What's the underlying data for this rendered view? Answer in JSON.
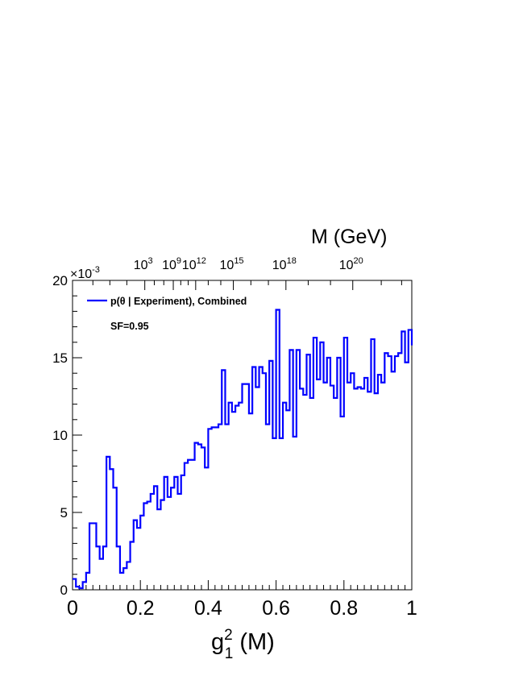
{
  "colors": {
    "series": "#0000ff",
    "axis": "#000000",
    "background": "#ffffff"
  },
  "chart_data": {
    "type": "histogram",
    "xlabel": "g",
    "xlabel_sup": "2",
    "xlabel_sub": "1",
    "xlabel_suffix": " (M)",
    "xlim": [
      0,
      1
    ],
    "ylim": [
      0,
      0.02
    ],
    "y_multiplier": "×10",
    "y_multiplier_exp": "-3",
    "x_tick_labels": [
      "0",
      "0.2",
      "0.4",
      "0.6",
      "0.8",
      "1"
    ],
    "x_ticks": [
      0,
      0.2,
      0.4,
      0.6,
      0.8,
      1.0
    ],
    "y_tick_labels": [
      "0",
      "5",
      "10",
      "15",
      "20"
    ],
    "y_ticks": [
      0,
      0.005,
      0.01,
      0.015,
      0.02
    ],
    "top_axis": {
      "label": "M (GeV)",
      "ticks": [
        {
          "base": "10",
          "exp": "3",
          "x": 0.213
        },
        {
          "base": "10",
          "exp": "9",
          "x": 0.297
        },
        {
          "base": "10",
          "exp": "12",
          "x": 0.363
        },
        {
          "base": "10",
          "exp": "15",
          "x": 0.474
        },
        {
          "base": "10",
          "exp": "18",
          "x": 0.629
        },
        {
          "base": "10",
          "exp": "20",
          "x": 0.826
        }
      ]
    },
    "legend": {
      "series_label": "p(θ | Experiment), Combined",
      "note": "SF=0.95",
      "position": "top-left"
    },
    "bin_edges_start": 0,
    "bin_width": 0.01,
    "series": [
      {
        "values": [
          0.0007,
          0.0002,
          0.0001,
          0.0005,
          0.0011,
          0.0043,
          0.0043,
          0.0028,
          0.002,
          0.0028,
          0.0086,
          0.0078,
          0.0066,
          0.0028,
          0.0011,
          0.0014,
          0.0018,
          0.0031,
          0.0045,
          0.004,
          0.0048,
          0.0056,
          0.0057,
          0.0062,
          0.0067,
          0.0052,
          0.0058,
          0.0073,
          0.006,
          0.0066,
          0.0073,
          0.0062,
          0.0074,
          0.0082,
          0.0084,
          0.0084,
          0.0095,
          0.0094,
          0.0092,
          0.0079,
          0.0104,
          0.0105,
          0.0105,
          0.0107,
          0.0142,
          0.0107,
          0.0121,
          0.0115,
          0.0119,
          0.0121,
          0.0133,
          0.0133,
          0.0114,
          0.0144,
          0.0131,
          0.0144,
          0.014,
          0.0107,
          0.0148,
          0.0098,
          0.0181,
          0.0098,
          0.0121,
          0.0116,
          0.0155,
          0.0099,
          0.0155,
          0.013,
          0.0126,
          0.0152,
          0.0124,
          0.0163,
          0.0136,
          0.016,
          0.0134,
          0.015,
          0.0132,
          0.0124,
          0.015,
          0.0112,
          0.0163,
          0.0134,
          0.014,
          0.013,
          0.0131,
          0.013,
          0.0137,
          0.0128,
          0.0162,
          0.0127,
          0.0139,
          0.0134,
          0.0153,
          0.0151,
          0.0141,
          0.0151,
          0.0153,
          0.0167,
          0.0147,
          0.0168,
          0.0158
        ]
      }
    ]
  }
}
